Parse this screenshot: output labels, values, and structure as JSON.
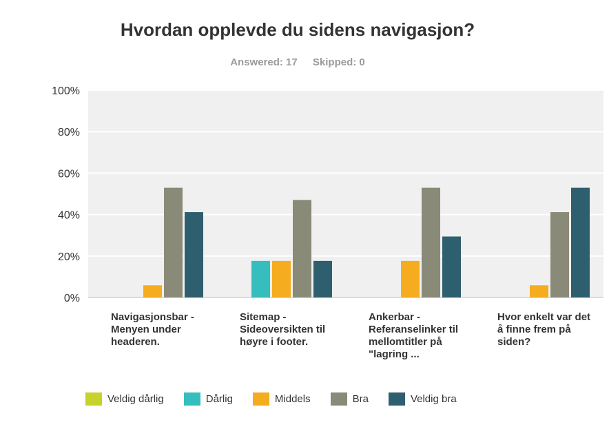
{
  "header": {
    "title": "Hvordan opplevde du sidens navigasjon?",
    "answered": "Answered: 17",
    "skipped": "Skipped: 0"
  },
  "chart_data": {
    "type": "bar",
    "ylim": [
      0,
      100
    ],
    "yticks": [
      "0%",
      "20%",
      "40%",
      "60%",
      "80%",
      "100%"
    ],
    "grid": true,
    "legend_position": "bottom",
    "categories": [
      "Navigasjonsbar - Menyen under headeren.",
      "Sitemap - Sideoversikten til høyre i footer.",
      "Ankerbar - Referanselinker til mellomtitler på \"lagring ...",
      "Hvor enkelt var det å finne frem på siden?"
    ],
    "series": [
      {
        "name": "Veldig dårlig",
        "color": "#c9d22b",
        "values": [
          0,
          0,
          0,
          0
        ]
      },
      {
        "name": "Dårlig",
        "color": "#36bdbd",
        "values": [
          0,
          17.65,
          0,
          0
        ]
      },
      {
        "name": "Middels",
        "color": "#f5ac1f",
        "values": [
          5.88,
          17.65,
          17.65,
          5.88
        ]
      },
      {
        "name": "Bra",
        "color": "#8a8a78",
        "values": [
          52.94,
          47.06,
          52.94,
          41.18
        ]
      },
      {
        "name": "Veldig bra",
        "color": "#2e5f6e",
        "values": [
          41.18,
          17.65,
          29.41,
          52.94
        ]
      }
    ]
  }
}
